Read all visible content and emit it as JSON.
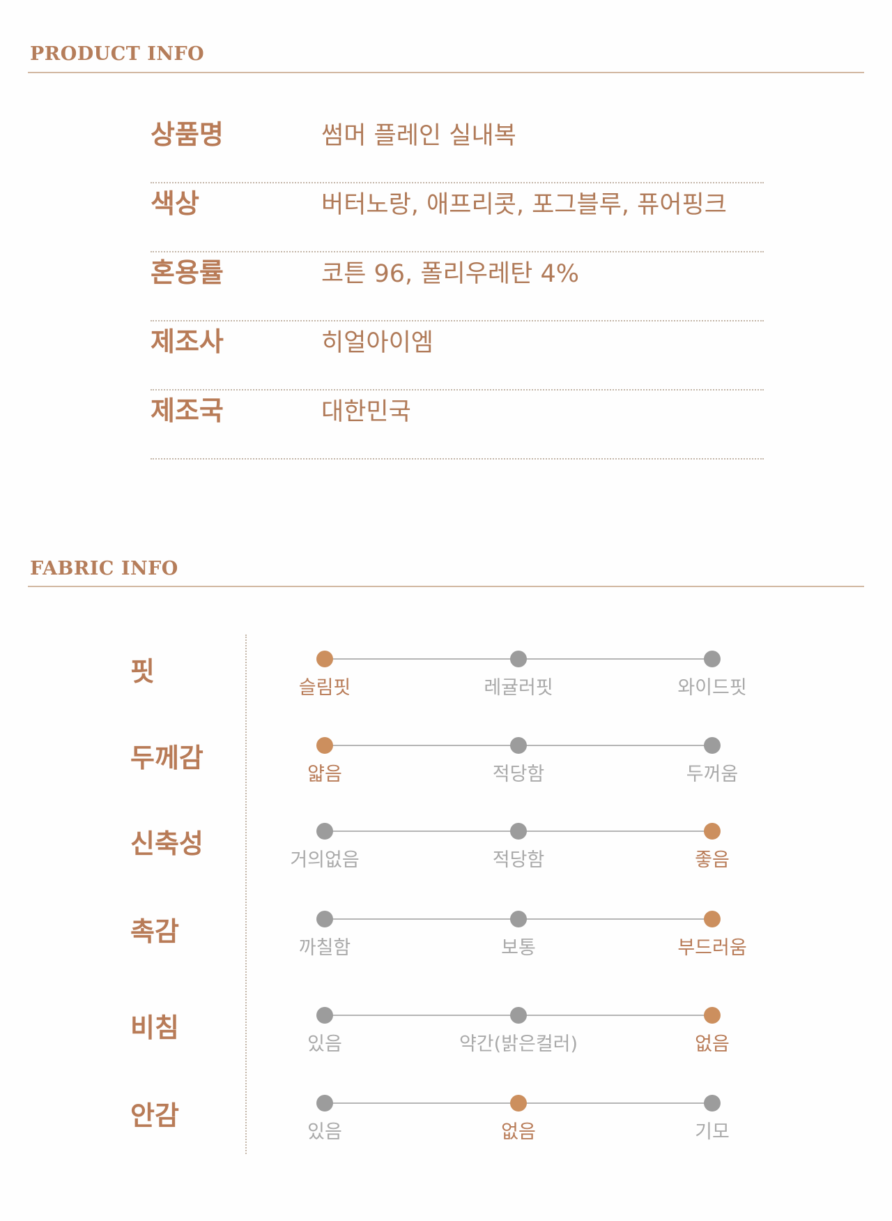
{
  "product_info": {
    "title": "PRODUCT INFO",
    "rows": [
      {
        "label": "상품명",
        "value": "썸머 플레인 실내복"
      },
      {
        "label": "색상",
        "value": "버터노랑, 애프리콧, 포그블루, 퓨어핑크"
      },
      {
        "label": "혼용률",
        "value": "코튼 96, 폴리우레탄 4%"
      },
      {
        "label": "제조사",
        "value": "히얼아이엠"
      },
      {
        "label": "제조국",
        "value": "대한민국"
      }
    ]
  },
  "fabric_info": {
    "title": "FABRIC INFO",
    "accent_color": "#cc8f5e",
    "inactive_color": "#9c9c9c",
    "rows": [
      {
        "label": "핏",
        "options": [
          "슬림핏",
          "레귤러핏",
          "와이드핏"
        ],
        "selected": 0
      },
      {
        "label": "두께감",
        "options": [
          "얇음",
          "적당함",
          "두꺼움"
        ],
        "selected": 0
      },
      {
        "label": "신축성",
        "options": [
          "거의없음",
          "적당함",
          "좋음"
        ],
        "selected": 2
      },
      {
        "label": "촉감",
        "options": [
          "까칠함",
          "보통",
          "부드러움"
        ],
        "selected": 2
      },
      {
        "label": "비침",
        "options": [
          "있음",
          "약간(밝은컬러)",
          "없음"
        ],
        "selected": 2
      },
      {
        "label": "안감",
        "options": [
          "있음",
          "없음",
          "기모"
        ],
        "selected": 1
      }
    ]
  }
}
